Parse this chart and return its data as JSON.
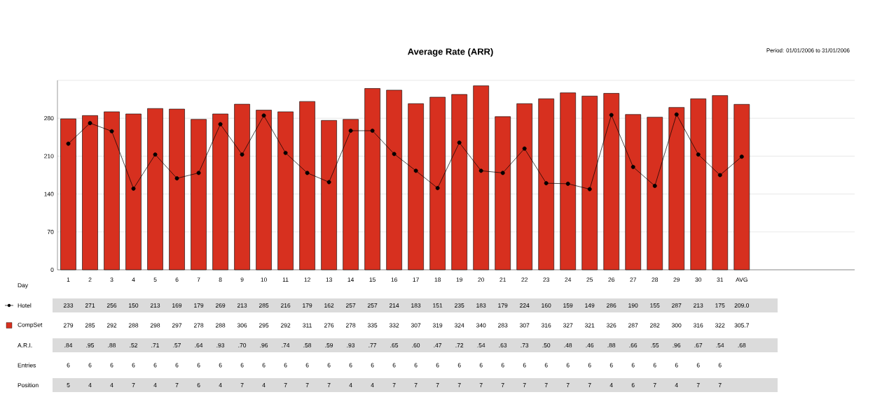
{
  "chart_data": {
    "type": "bar",
    "title": "Average Rate (ARR)",
    "subtitle": "Period: 01/01/2006 to 31/01/2006",
    "xlabel": "Day",
    "categories": [
      "1",
      "2",
      "3",
      "4",
      "5",
      "6",
      "7",
      "8",
      "9",
      "10",
      "11",
      "12",
      "13",
      "14",
      "15",
      "16",
      "17",
      "18",
      "19",
      "20",
      "21",
      "22",
      "23",
      "24",
      "25",
      "26",
      "27",
      "28",
      "29",
      "30",
      "31",
      "AVG"
    ],
    "series": [
      {
        "name": "Hotel",
        "type": "line",
        "color": "#000000",
        "values": [
          233,
          271,
          256,
          150,
          213,
          169,
          179,
          269,
          213,
          285,
          216,
          179,
          162,
          257,
          257,
          214,
          183,
          151,
          235,
          183,
          179,
          224,
          160,
          159,
          149,
          286,
          190,
          155,
          287,
          213,
          175,
          209.0
        ],
        "value_labels": [
          "233",
          "271",
          "256",
          "150",
          "213",
          "169",
          "179",
          "269",
          "213",
          "285",
          "216",
          "179",
          "162",
          "257",
          "257",
          "214",
          "183",
          "151",
          "235",
          "183",
          "179",
          "224",
          "160",
          "159",
          "149",
          "286",
          "190",
          "155",
          "287",
          "213",
          "175",
          "209.0"
        ]
      },
      {
        "name": "CompSet",
        "color": "#d7301f",
        "values": [
          279,
          285,
          292,
          288,
          298,
          297,
          278,
          288,
          306,
          295,
          292,
          311,
          276,
          278,
          335,
          332,
          307,
          319,
          324,
          340,
          283,
          307,
          316,
          327,
          321,
          326,
          287,
          282,
          300,
          316,
          322,
          305.7
        ],
        "value_labels": [
          "279",
          "285",
          "292",
          "288",
          "298",
          "297",
          "278",
          "288",
          "306",
          "295",
          "292",
          "311",
          "276",
          "278",
          "335",
          "332",
          "307",
          "319",
          "324",
          "340",
          "283",
          "307",
          "316",
          "327",
          "321",
          "326",
          "287",
          "282",
          "300",
          "316",
          "322",
          "305.7"
        ]
      }
    ],
    "annotations": [
      "A.R.I.",
      ".84",
      ".95",
      ".88",
      ".52",
      ".71",
      ".57",
      ".64",
      ".93",
      ".70",
      ".96",
      ".74",
      ".58",
      ".59",
      ".93",
      ".77",
      ".65",
      ".60",
      ".47",
      ".72",
      ".54",
      ".63",
      ".73",
      ".50",
      ".48",
      ".46",
      ".88",
      ".66",
      ".55",
      ".96",
      ".67",
      ".54",
      ".68",
      "Entries",
      "6",
      "6",
      "6",
      "6",
      "6",
      "6",
      "6",
      "6",
      "6",
      "6",
      "6",
      "6",
      "6",
      "6",
      "6",
      "6",
      "6",
      "6",
      "6",
      "6",
      "6",
      "6",
      "6",
      "6",
      "6",
      "6",
      "6",
      "6",
      "6",
      "6",
      "6",
      "Position",
      "5",
      "4",
      "4",
      "7",
      "4",
      "7",
      "6",
      "4",
      "7",
      "4",
      "7",
      "7",
      "7",
      "4",
      "4",
      "7",
      "7",
      "7",
      "7",
      "7",
      "7",
      "7",
      "7",
      "7",
      "7",
      "4",
      "6",
      "7",
      "4",
      "7",
      "7"
    ],
    "legend": "left",
    "ylim": [
      0,
      350
    ],
    "yticks": [
      0,
      70,
      140,
      210,
      280,
      {
        "value": 350,
        "label": null
      }
    ],
    "grid": "y",
    "marker": "circle",
    "line_style": "solid"
  }
}
